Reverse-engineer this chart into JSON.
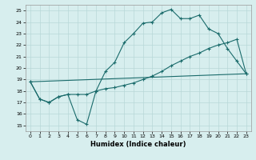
{
  "title": "",
  "xlabel": "Humidex (Indice chaleur)",
  "xlim": [
    -0.5,
    23.5
  ],
  "ylim": [
    14.5,
    25.5
  ],
  "yticks": [
    15,
    16,
    17,
    18,
    19,
    20,
    21,
    22,
    23,
    24,
    25
  ],
  "xticks": [
    0,
    1,
    2,
    3,
    4,
    5,
    6,
    7,
    8,
    9,
    10,
    11,
    12,
    13,
    14,
    15,
    16,
    17,
    18,
    19,
    20,
    21,
    22,
    23
  ],
  "bg_color": "#d7eeee",
  "grid_color": "#b8d8d8",
  "line_color": "#1a6b6b",
  "line1_x": [
    0,
    1,
    2,
    3,
    4,
    5,
    6,
    7,
    8,
    9,
    10,
    11,
    12,
    13,
    14,
    15,
    16,
    17,
    18,
    19,
    20,
    21,
    22,
    23
  ],
  "line1_y": [
    18.8,
    17.3,
    17.0,
    17.5,
    17.7,
    15.5,
    15.1,
    18.0,
    19.7,
    20.5,
    22.2,
    23.0,
    23.9,
    24.0,
    24.8,
    25.1,
    24.3,
    24.3,
    24.6,
    23.4,
    23.0,
    21.7,
    20.6,
    19.5
  ],
  "line2_x": [
    0,
    1,
    2,
    3,
    4,
    5,
    6,
    7,
    8,
    9,
    10,
    11,
    12,
    13,
    14,
    15,
    16,
    17,
    18,
    19,
    20,
    21,
    22,
    23
  ],
  "line2_y": [
    18.8,
    17.3,
    17.0,
    17.5,
    17.7,
    17.7,
    17.7,
    18.0,
    18.2,
    18.3,
    18.5,
    18.7,
    19.0,
    19.3,
    19.7,
    20.2,
    20.6,
    21.0,
    21.3,
    21.7,
    22.0,
    22.2,
    22.5,
    19.5
  ],
  "line3_x": [
    0,
    23
  ],
  "line3_y": [
    18.8,
    19.5
  ]
}
